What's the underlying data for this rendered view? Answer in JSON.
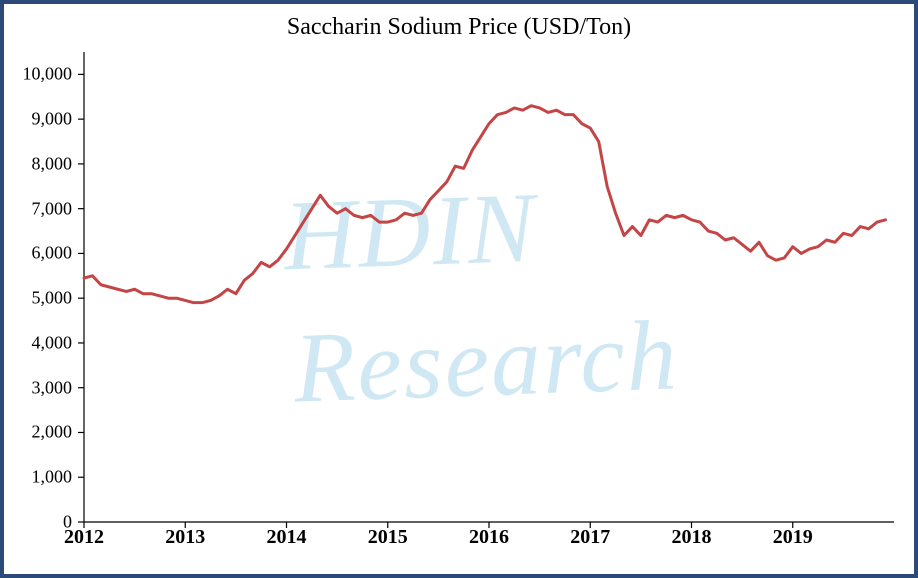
{
  "chart": {
    "type": "line",
    "title": "Saccharin Sodium Price (USD/Ton)",
    "title_fontsize": 24,
    "background_color": "#ffffff",
    "frame_border_color": "#2b4a7a",
    "frame_border_width": 4,
    "axis_line_color": "#000000",
    "axis_line_width": 1.2,
    "tick_length": 6,
    "y": {
      "min": 0,
      "max": 10500,
      "ticks": [
        0,
        1000,
        2000,
        3000,
        4000,
        5000,
        6000,
        7000,
        8000,
        9000,
        10000
      ],
      "tick_labels": [
        "0",
        "1,000",
        "2,000",
        "3,000",
        "4,000",
        "5,000",
        "6,000",
        "7,000",
        "8,000",
        "9,000",
        "10,000"
      ],
      "label_fontsize": 18
    },
    "x": {
      "min": 2012,
      "max": 2020,
      "ticks": [
        2012,
        2013,
        2014,
        2015,
        2016,
        2017,
        2018,
        2019
      ],
      "tick_labels": [
        "2012",
        "2013",
        "2014",
        "2015",
        "2016",
        "2017",
        "2018",
        "2019"
      ],
      "label_fontsize": 20,
      "label_fontweight": "bold"
    },
    "series": {
      "color": "#c44545",
      "line_width": 3,
      "x_step_months": 1,
      "start_year": 2012,
      "values": [
        5450,
        5500,
        5300,
        5250,
        5200,
        5150,
        5200,
        5100,
        5100,
        5050,
        5000,
        5000,
        4950,
        4900,
        4900,
        4950,
        5050,
        5200,
        5100,
        5400,
        5550,
        5800,
        5700,
        5850,
        6100,
        6400,
        6700,
        7000,
        7300,
        7050,
        6900,
        7000,
        6850,
        6800,
        6850,
        6700,
        6700,
        6750,
        6900,
        6850,
        6900,
        7200,
        7400,
        7600,
        7950,
        7900,
        8300,
        8600,
        8900,
        9100,
        9150,
        9250,
        9200,
        9300,
        9250,
        9150,
        9200,
        9100,
        9100,
        8900,
        8800,
        8500,
        7500,
        6900,
        6400,
        6600,
        6400,
        6750,
        6700,
        6850,
        6800,
        6850,
        6750,
        6700,
        6500,
        6450,
        6300,
        6350,
        6200,
        6050,
        6250,
        5950,
        5850,
        5900,
        6150,
        6000,
        6100,
        6150,
        6300,
        6250,
        6450,
        6400,
        6600,
        6550,
        6700,
        6750
      ]
    },
    "watermark": {
      "line1": "HDIN",
      "line2": "Research",
      "color": "rgba(120,190,220,0.35)",
      "fontsize": 100,
      "italic": true
    }
  }
}
